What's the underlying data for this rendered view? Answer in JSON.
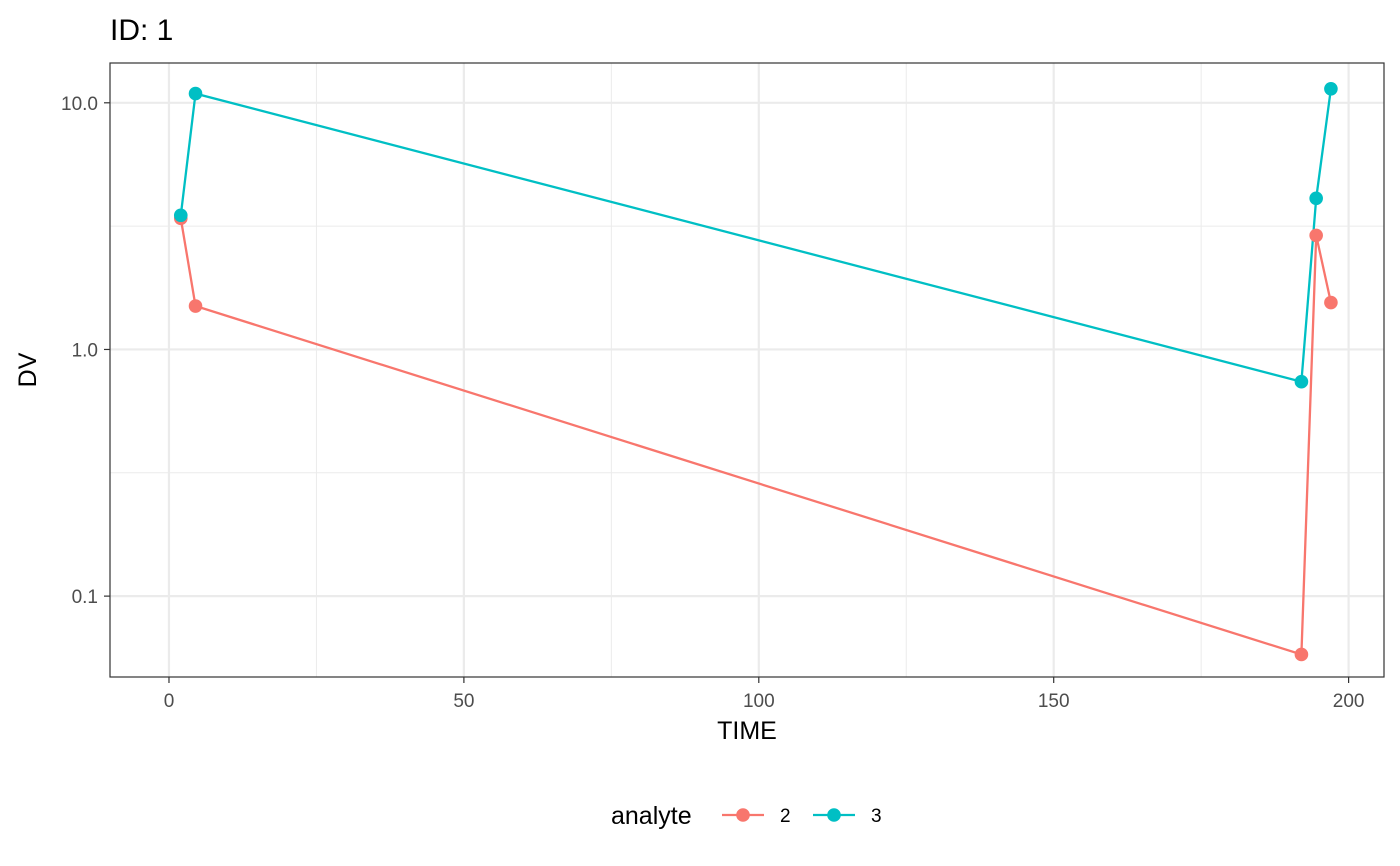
{
  "chart_data": {
    "type": "line",
    "title": "ID: 1",
    "xlabel": "TIME",
    "ylabel": "DV",
    "xlim": [
      -10,
      206
    ],
    "ylim": [
      0.047,
      14.5
    ],
    "yscale": "log",
    "grid": true,
    "x_ticks": [
      0,
      50,
      100,
      150,
      200
    ],
    "x_tick_labels": [
      "0",
      "50",
      "100",
      "150",
      "200"
    ],
    "y_ticks": [
      0.1,
      1,
      10
    ],
    "y_tick_labels": [
      "0.1",
      "1.0",
      "10.0"
    ],
    "legend": {
      "title": "analyte",
      "placement": "bottom"
    },
    "series": [
      {
        "name": "2",
        "color": "#F8766D",
        "x": [
          2,
          4.5,
          192,
          194.5,
          197
        ],
        "y": [
          3.4,
          1.5,
          0.058,
          2.9,
          1.55
        ]
      },
      {
        "name": "3",
        "color": "#00BFC4",
        "x": [
          2,
          4.5,
          192,
          194.5,
          197
        ],
        "y": [
          3.5,
          10.9,
          0.74,
          4.1,
          11.4
        ]
      }
    ]
  }
}
